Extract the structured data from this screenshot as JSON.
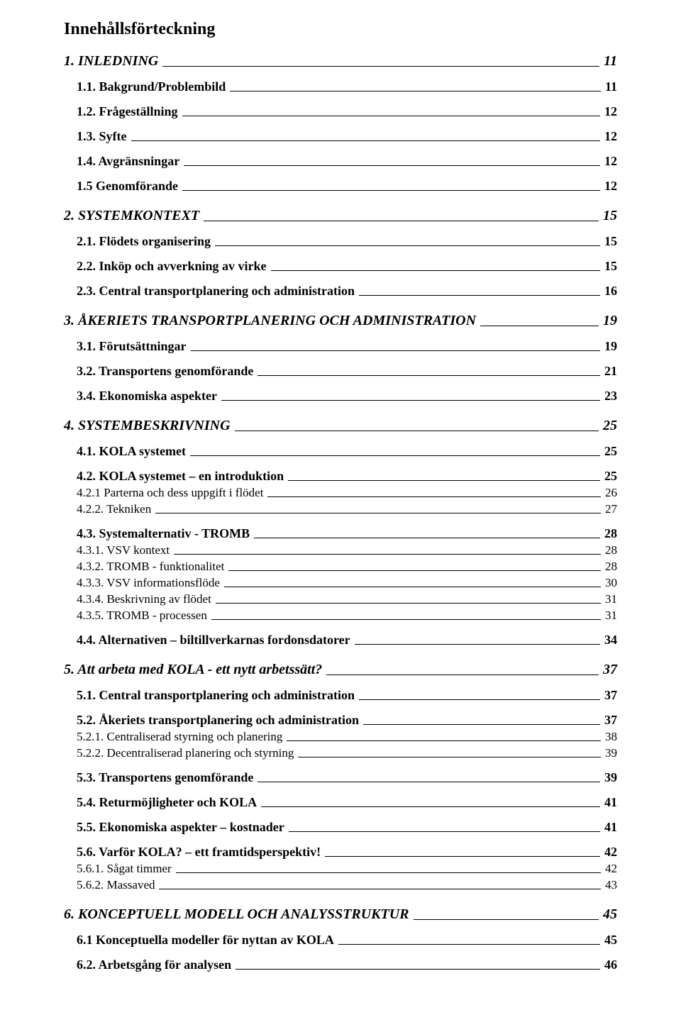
{
  "title": "Innehållsförteckning",
  "typography": {
    "font_family": "Times New Roman",
    "title_fontsize": 24,
    "lvl1_fontsize": 20,
    "lvl2_fontsize": 18,
    "lvl3_fontsize": 17,
    "text_color": "#000000",
    "background_color": "#ffffff"
  },
  "entries": [
    {
      "level": 1,
      "label": "1. INLEDNING",
      "page": "11"
    },
    {
      "level": 2,
      "label": "1.1. Bakgrund/Problembild",
      "page": "11"
    },
    {
      "level": 2,
      "label": "1.2. Frågeställning",
      "page": "12"
    },
    {
      "level": 2,
      "label": "1.3. Syfte",
      "page": "12"
    },
    {
      "level": 2,
      "label": "1.4. Avgränsningar",
      "page": "12"
    },
    {
      "level": 2,
      "label": "1.5 Genomförande",
      "page": "12"
    },
    {
      "level": 1,
      "label": "2. SYSTEMKONTEXT",
      "page": "15"
    },
    {
      "level": 2,
      "label": "2.1. Flödets organisering",
      "page": "15"
    },
    {
      "level": 2,
      "label": "2.2. Inköp och avverkning av virke",
      "page": "15"
    },
    {
      "level": 2,
      "label": "2.3. Central transportplanering och administration",
      "page": "16"
    },
    {
      "level": 1,
      "label": "3. ÅKERIETS TRANSPORTPLANERING OCH ADMINISTRATION",
      "page": "19"
    },
    {
      "level": 2,
      "label": "3.1. Förutsättningar",
      "page": "19"
    },
    {
      "level": 2,
      "label": "3.2. Transportens genomförande",
      "page": "21"
    },
    {
      "level": 2,
      "label": "3.4. Ekonomiska aspekter",
      "page": "23"
    },
    {
      "level": 1,
      "label": "4. SYSTEMBESKRIVNING",
      "page": "25"
    },
    {
      "level": 2,
      "label": "4.1. KOLA systemet",
      "page": "25"
    },
    {
      "level": 2,
      "label": "4.2. KOLA systemet – en introduktion",
      "page": "25"
    },
    {
      "level": 3,
      "label": "4.2.1 Parterna och dess uppgift i flödet",
      "page": "26"
    },
    {
      "level": 3,
      "label": "4.2.2. Tekniken",
      "page": "27"
    },
    {
      "level": 2,
      "label": "4.3. Systemalternativ - TROMB",
      "page": "28"
    },
    {
      "level": 3,
      "label": "4.3.1. VSV kontext",
      "page": "28"
    },
    {
      "level": 3,
      "label": "4.3.2. TROMB - funktionalitet",
      "page": "28"
    },
    {
      "level": 3,
      "label": "4.3.3. VSV informationsflöde",
      "page": "30"
    },
    {
      "level": 3,
      "label": "4.3.4. Beskrivning av flödet",
      "page": "31"
    },
    {
      "level": 3,
      "label": "4.3.5. TROMB - processen",
      "page": "31"
    },
    {
      "level": 2,
      "label": "4.4. Alternativen – biltillverkarnas fordonsdatorer",
      "page": "34"
    },
    {
      "level": 1,
      "label": "5. Att arbeta med KOLA - ett nytt arbetssätt?",
      "page": "37"
    },
    {
      "level": 2,
      "label": "5.1. Central transportplanering och administration",
      "page": "37"
    },
    {
      "level": 2,
      "label": "5.2. Åkeriets transportplanering och administration",
      "page": "37"
    },
    {
      "level": 3,
      "label": "5.2.1. Centraliserad styrning och planering",
      "page": "38"
    },
    {
      "level": 3,
      "label": "5.2.2. Decentraliserad planering och styrning",
      "page": "39"
    },
    {
      "level": 2,
      "label": "5.3. Transportens genomförande",
      "page": "39"
    },
    {
      "level": 2,
      "label": "5.4. Returmöjligheter och KOLA",
      "page": "41"
    },
    {
      "level": 2,
      "label": "5.5. Ekonomiska aspekter – kostnader",
      "page": "41"
    },
    {
      "level": 2,
      "label": "5.6. Varför KOLA? – ett framtidsperspektiv!",
      "page": "42"
    },
    {
      "level": 3,
      "label": "5.6.1. Sågat timmer",
      "page": "42"
    },
    {
      "level": 3,
      "label": "5.6.2. Massaved",
      "page": "43"
    },
    {
      "level": 1,
      "label": "6. KONCEPTUELL MODELL OCH ANALYSSTRUKTUR",
      "page": "45"
    },
    {
      "level": 2,
      "label": "6.1 Konceptuella modeller för nyttan av KOLA",
      "page": "45"
    },
    {
      "level": 2,
      "label": "6.2. Arbetsgång för analysen",
      "page": "46"
    }
  ]
}
